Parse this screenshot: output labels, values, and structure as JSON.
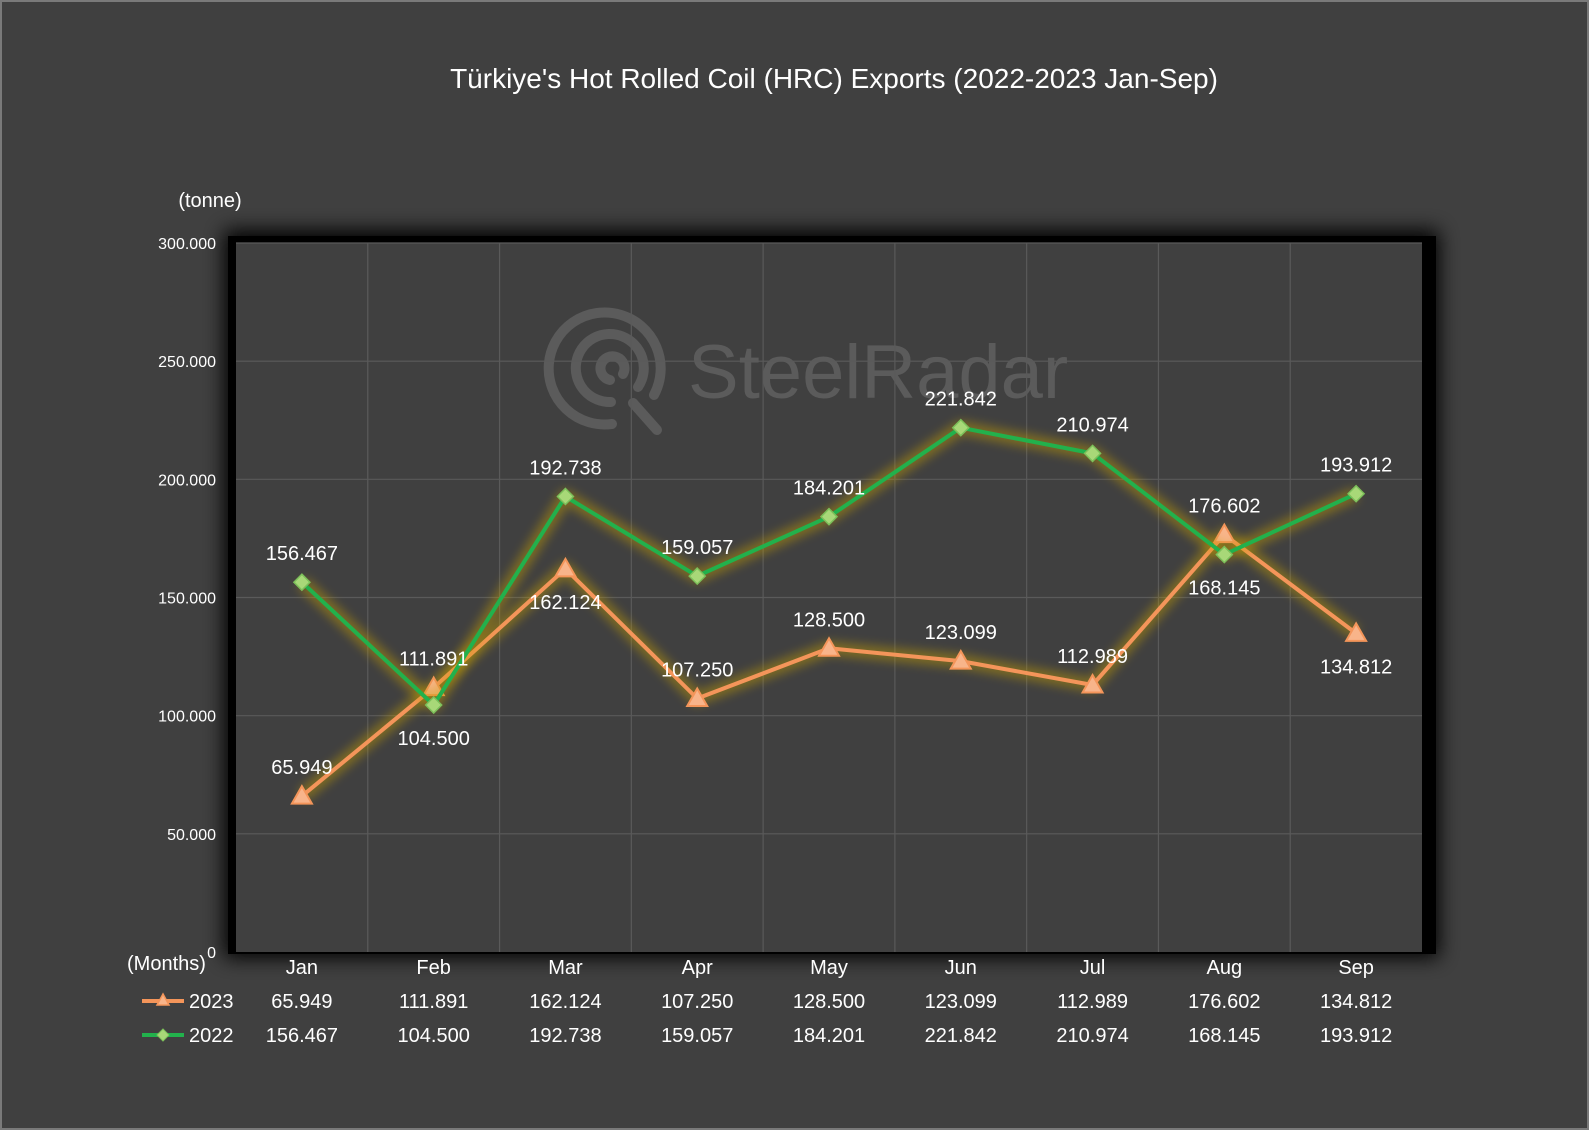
{
  "chart_data": {
    "type": "line",
    "title": "Türkiye's Hot Rolled Coil (HRC) Exports (2022-2023 Jan-Sep)",
    "ylabel": "(tonne)",
    "xlabel": "(Months)",
    "ylim": [
      0,
      300000
    ],
    "yticks": [
      0,
      50000,
      100000,
      150000,
      200000,
      250000,
      300000
    ],
    "ytick_labels": [
      "0",
      "50.000",
      "100.000",
      "150.000",
      "200.000",
      "250.000",
      "300.000"
    ],
    "categories": [
      "Jan",
      "Feb",
      "Mar",
      "Apr",
      "May",
      "Jun",
      "Jul",
      "Aug",
      "Sep"
    ],
    "grid": true,
    "legend": "data-table-bottom",
    "series": [
      {
        "name": "2023",
        "color": "#f4955a",
        "marker": "triangle",
        "values": [
          65949,
          111891,
          162124,
          107250,
          128500,
          123099,
          112989,
          176602,
          134812
        ],
        "labels": [
          "65.949",
          "111.891",
          "162.124",
          "107.250",
          "128.500",
          "123.099",
          "112.989",
          "176.602",
          "134.812"
        ],
        "label_pos": [
          "above",
          "above",
          "below",
          "above",
          "above",
          "above",
          "above",
          "above",
          "below"
        ]
      },
      {
        "name": "2022",
        "color": "#22b14c",
        "marker": "diamond",
        "values": [
          156467,
          104500,
          192738,
          159057,
          184201,
          221842,
          210974,
          168145,
          193912
        ],
        "labels": [
          "156.467",
          "104.500",
          "192.738",
          "159.057",
          "184.201",
          "221.842",
          "210.974",
          "168.145",
          "193.912"
        ],
        "label_pos": [
          "above",
          "below",
          "above",
          "above",
          "above",
          "above",
          "above",
          "below",
          "above"
        ]
      }
    ]
  },
  "watermark": "SteelRadar",
  "colors": {
    "background": "#404040",
    "plot_area": "#404040",
    "grid": "#5a5a5a",
    "text": "#ffffff"
  }
}
